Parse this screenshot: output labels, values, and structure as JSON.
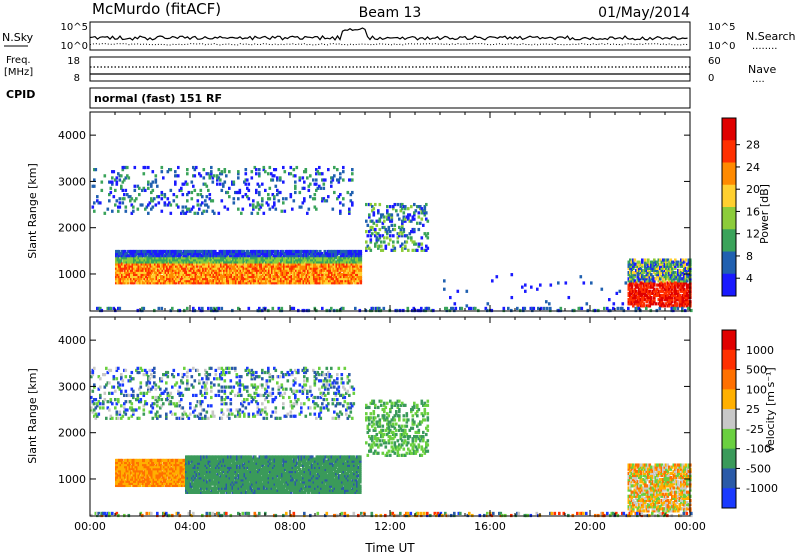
{
  "header": {
    "station": "McMurdo (fitACF)",
    "beam": "Beam 13",
    "date": "01/May/2014"
  },
  "noise_panel": {
    "left_label": "N.Sky",
    "right_label": "N.Search",
    "right_legend": "........",
    "left_ticks": [
      "10^5",
      "10^0"
    ],
    "right_ticks": [
      "10^5",
      "10^0"
    ]
  },
  "freq_panel": {
    "left_label_line1": "Freq.",
    "left_label_line2": "[MHz]",
    "right_label": "Nave",
    "right_legend": "....",
    "left_ticks": [
      "18",
      "8"
    ],
    "right_ticks": [
      "60",
      "0"
    ]
  },
  "cpid_panel": {
    "label": "CPID",
    "text": "normal (fast) 151 RF"
  },
  "chart_data": [
    {
      "type": "heatmap",
      "quantity": "Power",
      "colorbar_label": "Power [dB]",
      "colorbar_ticks": [
        "28",
        "24",
        "20",
        "16",
        "12",
        "8",
        "4"
      ],
      "colorbar_range": [
        0,
        30
      ],
      "colorbar_colors": [
        "#1a1aff",
        "#2060b0",
        "#3aa35a",
        "#8ccc3a",
        "#ffd030",
        "#ff8a00",
        "#ff3000",
        "#e00000"
      ],
      "ylabel": "Slant Range [km]",
      "y_ticks": [
        "4000",
        "3000",
        "2000",
        "1000"
      ],
      "ylim": [
        200,
        4500
      ],
      "x_ticks": [
        "00:00",
        "04:00",
        "08:00",
        "12:00",
        "16:00",
        "20:00",
        "00:00"
      ],
      "xlim_hours": [
        0,
        24
      ]
    },
    {
      "type": "heatmap",
      "quantity": "Velocity",
      "colorbar_label": "Velocity [m s⁻¹]",
      "colorbar_ticks": [
        "1000",
        "500",
        "100",
        "25",
        "-25",
        "-100",
        "-500",
        "-1000"
      ],
      "colorbar_range": [
        -1200,
        1200
      ],
      "colorbar_colors": [
        "#1a3aff",
        "#2a5aa8",
        "#3a9a5a",
        "#6ad040",
        "#c8c8c8",
        "#ffb000",
        "#ff7000",
        "#ff3000",
        "#e00000"
      ],
      "ylabel": "Slant Range [km]",
      "y_ticks": [
        "4000",
        "3000",
        "2000",
        "1000"
      ],
      "ylim": [
        200,
        4500
      ],
      "x_ticks": [
        "00:00",
        "04:00",
        "08:00",
        "12:00",
        "16:00",
        "20:00",
        "00:00"
      ],
      "xlim_hours": [
        0,
        24
      ],
      "xlabel": "Time UT"
    }
  ]
}
